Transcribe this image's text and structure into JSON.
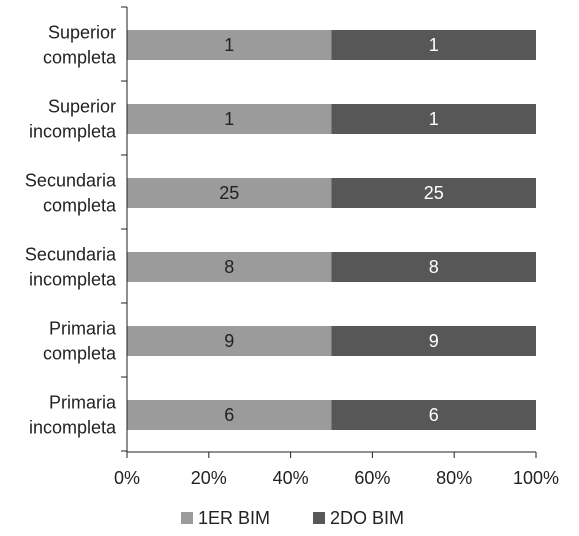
{
  "chart_data": {
    "type": "bar",
    "orientation": "horizontal",
    "stacked": "percent",
    "categories": [
      [
        "Superior",
        "completa"
      ],
      [
        "Superior",
        "incompleta"
      ],
      [
        "Secundaria",
        "completa"
      ],
      [
        "Secundaria",
        "incompleta"
      ],
      [
        "Primaria",
        "completa"
      ],
      [
        "Primaria",
        "incompleta"
      ]
    ],
    "series": [
      {
        "name": "1ER BIM",
        "values": [
          1,
          1,
          25,
          8,
          9,
          6
        ],
        "color": "#9b9b9b",
        "label_color": "#222222"
      },
      {
        "name": "2DO BIM",
        "values": [
          1,
          1,
          25,
          8,
          9,
          6
        ],
        "color": "#575757",
        "label_color": "#ffffff"
      }
    ],
    "xticks": [
      "0%",
      "20%",
      "40%",
      "60%",
      "80%",
      "100%"
    ],
    "xlim": [
      0,
      100
    ],
    "grid": false,
    "legend": "bottom",
    "axis_color": "#222222"
  }
}
